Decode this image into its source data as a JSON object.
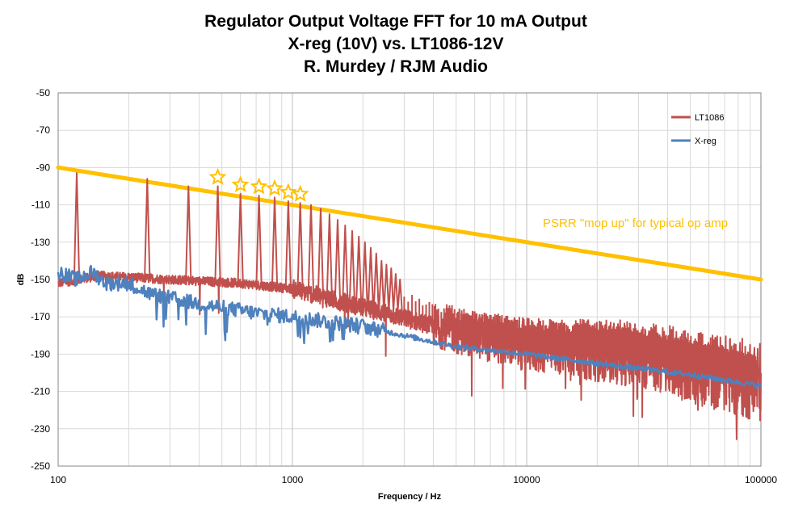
{
  "chart_data": {
    "type": "line",
    "title_lines": [
      "Regulator Output Voltage FFT for 10 mA Output",
      "X-reg (10V) vs. LT1086-12V",
      "R. Murdey / RJM Audio"
    ],
    "xlabel": "Frequency / Hz",
    "ylabel": "dB",
    "x_scale": "log",
    "xlim": [
      100,
      100000
    ],
    "ylim": [
      -250,
      -50
    ],
    "x_ticks": [
      100,
      1000,
      10000,
      100000
    ],
    "y_ticks": [
      -50,
      -70,
      -90,
      -110,
      -130,
      -150,
      -170,
      -190,
      -210,
      -230,
      -250
    ],
    "grid": true,
    "legend_position": "top-right",
    "series": [
      {
        "name": "LT1086",
        "color": "#C0504D",
        "baseline": [
          [
            100,
            -152
          ],
          [
            150,
            -148
          ],
          [
            300,
            -150
          ],
          [
            600,
            -152
          ],
          [
            1000,
            -155
          ],
          [
            2000,
            -165
          ],
          [
            5000,
            -178
          ],
          [
            10000,
            -185
          ],
          [
            30000,
            -190
          ],
          [
            100000,
            -205
          ]
        ],
        "peaks": [
          [
            120,
            -93
          ],
          [
            240,
            -96
          ],
          [
            360,
            -100
          ],
          [
            480,
            -100
          ],
          [
            600,
            -104
          ],
          [
            720,
            -105
          ],
          [
            840,
            -106
          ],
          [
            960,
            -108
          ],
          [
            1080,
            -109
          ],
          [
            1200,
            -110
          ],
          [
            1320,
            -112
          ],
          [
            1440,
            -115
          ],
          [
            1560,
            -118
          ],
          [
            1680,
            -121
          ],
          [
            1800,
            -124
          ],
          [
            1920,
            -127
          ],
          [
            2040,
            -130
          ],
          [
            2160,
            -133
          ],
          [
            2280,
            -136
          ],
          [
            2400,
            -140
          ],
          [
            2520,
            -142
          ],
          [
            2640,
            -144
          ],
          [
            2760,
            -147
          ],
          [
            2880,
            -150
          ]
        ]
      },
      {
        "name": "X-reg",
        "color": "#4F81BD",
        "points": [
          [
            100,
            -146
          ],
          [
            120,
            -150
          ],
          [
            140,
            -146
          ],
          [
            160,
            -152
          ],
          [
            200,
            -152
          ],
          [
            250,
            -158
          ],
          [
            300,
            -160
          ],
          [
            400,
            -163
          ],
          [
            500,
            -165
          ],
          [
            700,
            -168
          ],
          [
            1000,
            -170
          ],
          [
            1500,
            -173
          ],
          [
            2000,
            -175
          ],
          [
            3000,
            -180
          ],
          [
            5000,
            -186
          ],
          [
            10000,
            -190
          ],
          [
            20000,
            -195
          ],
          [
            50000,
            -201
          ],
          [
            100000,
            -207
          ]
        ]
      },
      {
        "name": "PSRR",
        "color": "#FFC000",
        "points": [
          [
            100,
            -90
          ],
          [
            100000,
            -150
          ]
        ]
      }
    ],
    "annotations": [
      {
        "text": "PSRR \"mop up\" for typical op amp",
        "color": "#FFC000"
      }
    ],
    "star_markers_x": [
      480,
      600,
      720,
      840,
      960,
      1080
    ]
  }
}
